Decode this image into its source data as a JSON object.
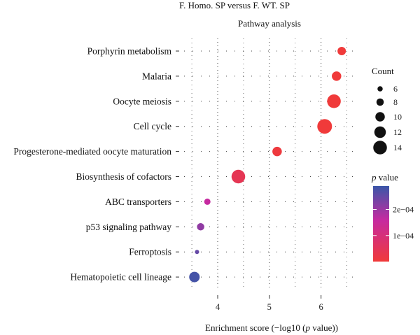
{
  "chart_data": {
    "type": "scatter",
    "title": "F. Homo. SP versus F. WT. SP",
    "subtitle": "Pathway analysis",
    "xlabel": "Enrichment score (−log10 (p value))",
    "xlabel_prefix": "Enrichment score (−log10 (",
    "xlabel_italic": "p",
    "xlabel_suffix": " value))",
    "ylabel": "",
    "xlim": [
      3.35,
      6.75
    ],
    "x_ticks": [
      4,
      5,
      6
    ],
    "x_tick_labels": [
      "4",
      "5",
      "6"
    ],
    "grid": "dotted",
    "categories": [
      "Porphyrin metabolism",
      "Malaria",
      "Oocyte meiosis",
      "Cell cycle",
      "Progesterone-mediated oocyte maturation",
      "Biosynthesis of cofactors",
      "ABC transporters",
      "p53 signaling pathway",
      "Ferroptosis",
      "Hematopoietic cell lineage"
    ],
    "points": [
      {
        "category": "Porphyrin metabolism",
        "x": 6.4,
        "count": 9,
        "p_value": 4e-07
      },
      {
        "category": "Malaria",
        "x": 6.3,
        "count": 10,
        "p_value": 5e-07
      },
      {
        "category": "Oocyte meiosis",
        "x": 6.25,
        "count": 14,
        "p_value": 5.6e-07
      },
      {
        "category": "Cell cycle",
        "x": 6.07,
        "count": 15,
        "p_value": 8.5e-07
      },
      {
        "category": "Progesterone-mediated oocyte maturation",
        "x": 5.15,
        "count": 10,
        "p_value": 7e-06
      },
      {
        "category": "Biosynthesis of cofactors",
        "x": 4.4,
        "count": 14,
        "p_value": 4e-05
      },
      {
        "category": "ABC transporters",
        "x": 3.8,
        "count": 7,
        "p_value": 0.00016
      },
      {
        "category": "p53 signaling pathway",
        "x": 3.67,
        "count": 8,
        "p_value": 0.00021
      },
      {
        "category": "Ferroptosis",
        "x": 3.6,
        "count": 5,
        "p_value": 0.00025
      },
      {
        "category": "Hematopoietic cell lineage",
        "x": 3.55,
        "count": 11,
        "p_value": 0.00028
      }
    ],
    "size_legend": {
      "title": "Count",
      "values": [
        6,
        8,
        10,
        12,
        14
      ],
      "labels": [
        "6",
        "8",
        "10",
        "12",
        "14"
      ],
      "range": [
        5,
        15
      ]
    },
    "color_legend": {
      "title_italic": "p",
      "title_suffix": " value",
      "range": [
        1e-07,
        0.00029
      ],
      "ticks": [
        0.0001,
        0.0002
      ],
      "tick_labels": [
        "1e−04",
        "2e−04"
      ],
      "color_low": "#f03a3a",
      "color_mid": "#c62aa0",
      "color_high": "#3a56a8"
    },
    "legend_position": "right"
  }
}
